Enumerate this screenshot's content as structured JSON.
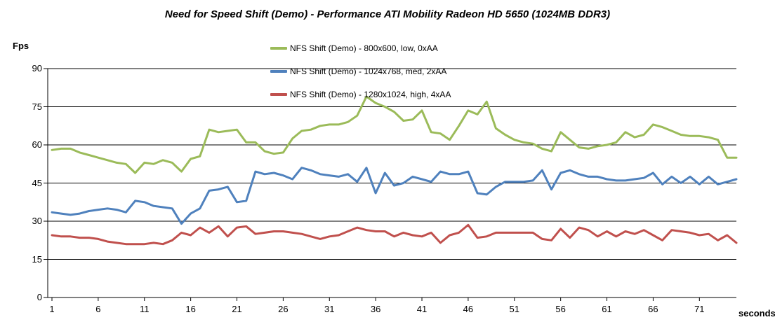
{
  "title": "Need for Speed Shift (Demo) - Performance ATI Mobility Radeon HD 5650 (1024MB DDR3)",
  "axes": {
    "y_label": "Fps",
    "x_label": "seconds",
    "y_ticks": [
      0,
      15,
      30,
      45,
      60,
      75,
      90
    ],
    "x_ticks": [
      1,
      6,
      11,
      16,
      21,
      26,
      31,
      36,
      41,
      46,
      51,
      56,
      61,
      66,
      71
    ]
  },
  "legend": {
    "items": [
      {
        "label": "NFS Shift (Demo) - 800x600,  low, 0xAA",
        "color": "#9BBB59"
      },
      {
        "label": "NFS Shift (Demo) - 1024x768,  med, 2xAA",
        "color": "#4F81BD"
      },
      {
        "label": "NFS Shift (Demo) - 1280x1024,  high, 4xAA",
        "color": "#C0504D"
      }
    ]
  },
  "chart_data": {
    "type": "line",
    "title": "Need for Speed Shift (Demo) - Performance ATI Mobility Radeon HD 5650 (1024MB DDR3)",
    "xlabel": "seconds",
    "ylabel": "Fps",
    "x_start": 1,
    "x_step": 1,
    "ylim": [
      0,
      90
    ],
    "grid": true,
    "legend_position": "top-center",
    "series": [
      {
        "name": "NFS Shift (Demo) - 800x600,  low, 0xAA",
        "color": "#9BBB59",
        "values": [
          58,
          58.5,
          58.5,
          57,
          56,
          55,
          54,
          53,
          52.5,
          49,
          53,
          52.5,
          54,
          53,
          49.5,
          54.5,
          55.5,
          66,
          65,
          65.5,
          66,
          61,
          61,
          57.5,
          56.5,
          57,
          62.5,
          65.5,
          66,
          67.5,
          68,
          68,
          69,
          71.5,
          79,
          76.5,
          75,
          73,
          69.5,
          70,
          73.5,
          65,
          64.5,
          62,
          67.5,
          73.5,
          72,
          77,
          66.5,
          64,
          62,
          61,
          60.5,
          58.5,
          57.5,
          65,
          62,
          59,
          58.5,
          59.5,
          60,
          61,
          65,
          63,
          64,
          68,
          67,
          65.5,
          64,
          63.5,
          63.5,
          63,
          62,
          55,
          55
        ]
      },
      {
        "name": "NFS Shift (Demo) - 1024x768,  med, 2xAA",
        "color": "#4F81BD",
        "values": [
          33.5,
          33,
          32.5,
          33,
          34,
          34.5,
          35,
          34.5,
          33.5,
          38,
          37.5,
          36,
          35.5,
          35,
          29,
          33,
          35,
          42,
          42.5,
          43.5,
          37.5,
          38,
          49.5,
          48.5,
          49,
          48,
          46.5,
          51,
          50,
          48.5,
          48,
          47.5,
          48.5,
          45.5,
          51,
          41,
          49,
          44,
          45,
          47.5,
          46.5,
          45.5,
          49.5,
          48.5,
          48.5,
          49.5,
          41,
          40.5,
          43.5,
          45.5,
          45.5,
          45.5,
          46,
          50,
          42.5,
          49,
          50,
          48.5,
          47.5,
          47.5,
          46.5,
          46,
          46,
          46.5,
          47,
          49,
          44.5,
          47.5,
          45,
          47.5,
          44.5,
          47.5,
          44.5,
          45.5,
          46.5
        ]
      },
      {
        "name": "NFS Shift (Demo) - 1280x1024,  high, 4xAA",
        "color": "#C0504D",
        "values": [
          24.5,
          24,
          24,
          23.5,
          23.5,
          23,
          22,
          21.5,
          21,
          21,
          21,
          21.5,
          21,
          22.5,
          25.5,
          24.5,
          27.5,
          25.5,
          28,
          24,
          27.5,
          28,
          25,
          25.5,
          26,
          26,
          25.5,
          25,
          24,
          23,
          24,
          24.5,
          26,
          27.5,
          26.5,
          26,
          26,
          24,
          25.5,
          24.5,
          24,
          25.5,
          21.5,
          24.5,
          25.5,
          28.5,
          23.5,
          24,
          25.5,
          25.5,
          25.5,
          25.5,
          25.5,
          23,
          22.5,
          27,
          23.5,
          27.5,
          26.5,
          24,
          26,
          24,
          26,
          25,
          26.5,
          24.5,
          22.5,
          26.5,
          26,
          25.5,
          24.5,
          25,
          22.5,
          24.5,
          21.5
        ]
      }
    ]
  }
}
